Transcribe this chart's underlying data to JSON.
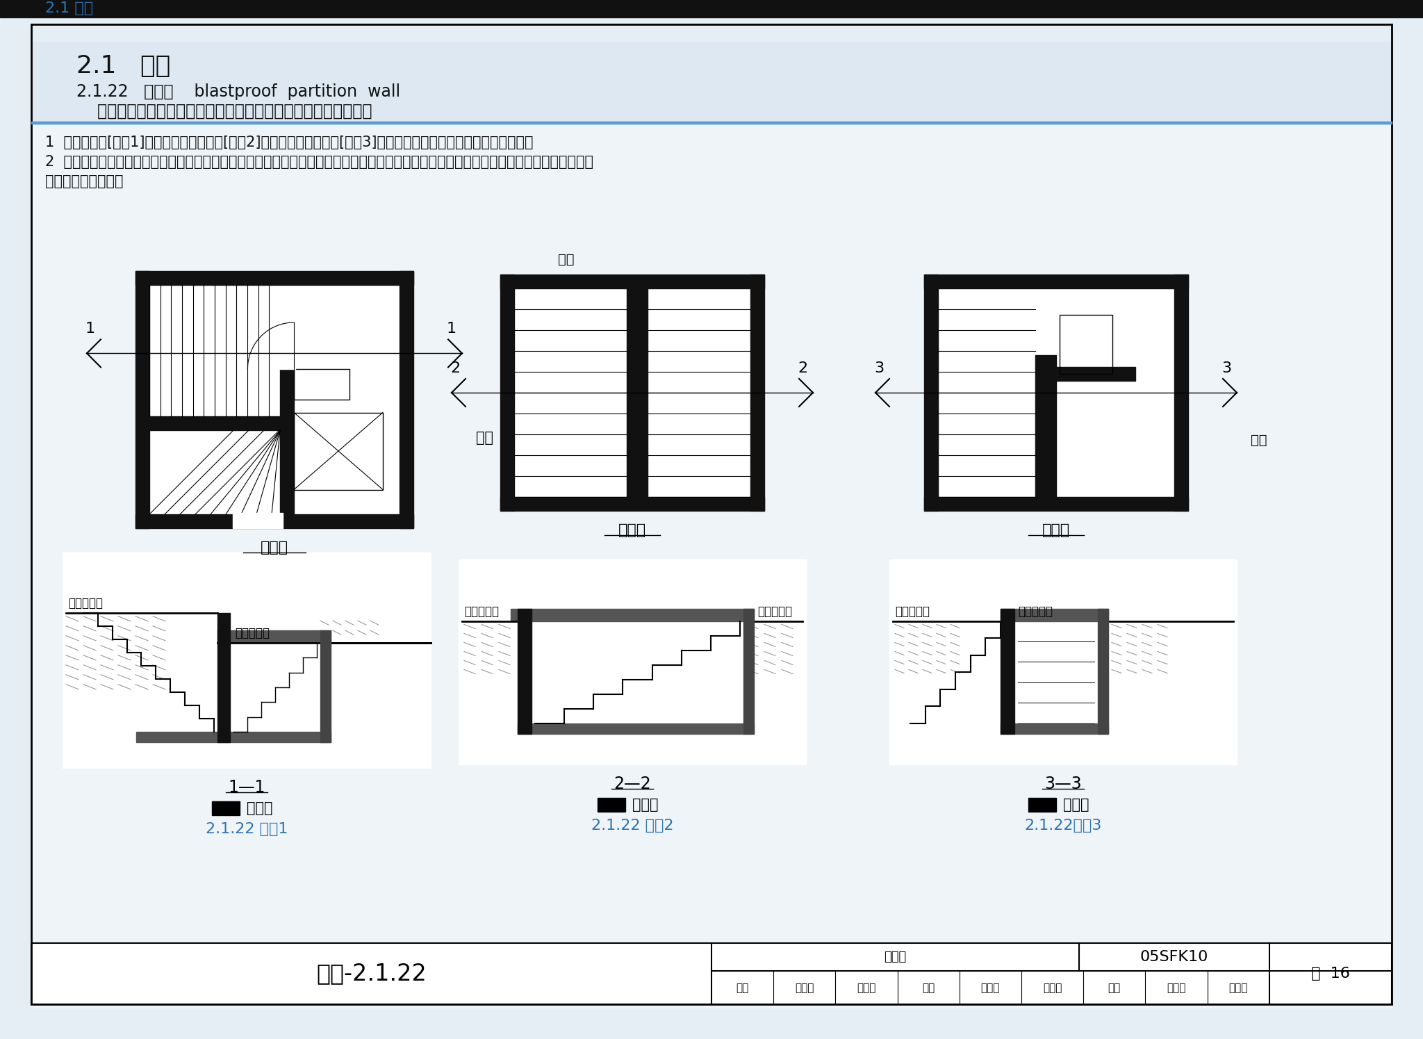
{
  "page_bg": "#eaf0f5",
  "header_bg_top": "#dde8f2",
  "content_bg": "#f0f5f8",
  "white": "#ffffff",
  "black": "#000000",
  "blue_text": "#2E74B5",
  "dark": "#1a1a1a",
  "gray_wall": "#333333",
  "gray_slab": "#666666",
  "gray_hatch": "#aaaaaa",
  "top_label": "2.1 术语",
  "title": "2.1   术语",
  "sub1a": "2.1.22   临空墙    blastproof  partition  wall",
  "sub1b": "    一侧直接受空气冲击波作用，另一侧为防空地下室内部的墙体。",
  "note1": "1  室内出入口[图示1]、独立式室外出入口[图示2]、附壁式室外出入口[图示3]三种口部形式的临空墙示意分别见图示；",
  "note2": "2  临空墙的定义十分明确，墙的一侧为室内，另一侧为室外空气；而防护密闭门的门框墙可作为一种特殊的临空墙看待，在结构计算中与临空",
  "note3": "墙的计算有所不同。",
  "lbl_shinei": "室内",
  "lbl_shiwai": "室外地平面",
  "lbl_shiceng": "首层地平面",
  "lbl_pingmian": "平面图",
  "lbl_11": "1—1",
  "lbl_22": "2—2",
  "lbl_33": "3—3",
  "lbl_lkq": "临空墙",
  "ref1": "2.1.22 图示1",
  "ref2": "2.1.22 图示2",
  "ref3": "2.1.22图示3",
  "bottom_title": "术语-2.1.22",
  "bottom_tujihao": "图集号",
  "bottom_code": "05SFK10",
  "bottom_ye": "页",
  "bottom_num": "16",
  "shenhe": "审核",
  "maxirong": "马希荣",
  "shangguanfang": "上官芳",
  "jiaodui": "校对",
  "wanghuandong": "王焕东",
  "wanghuanying": "王焕英",
  "sheji": "设计",
  "zhaoguihua": "赵贵华",
  "jiangzhongping": "姜重平"
}
